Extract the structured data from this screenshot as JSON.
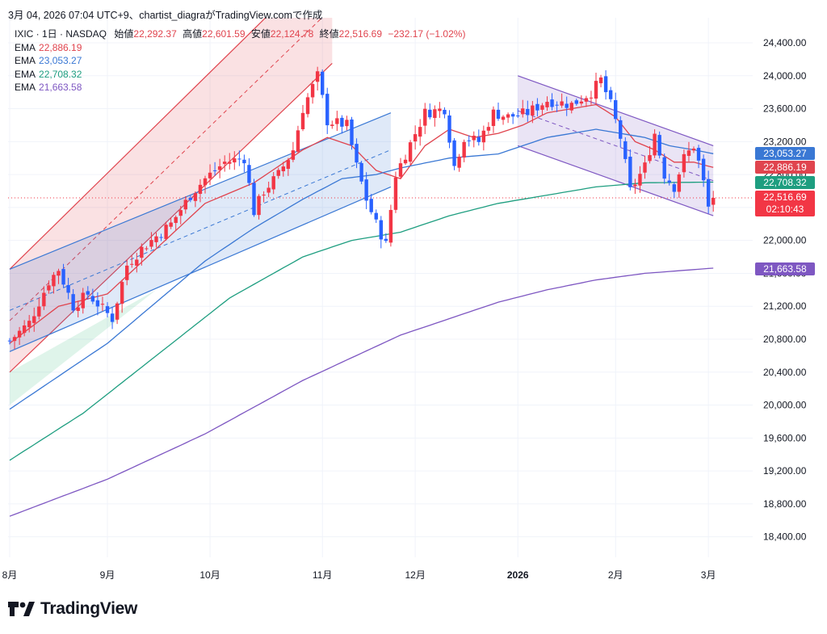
{
  "header": {
    "caption": "3月 04, 2026 07:04 UTC+9、chartist_diagraがTradingView.comで作成"
  },
  "legend": {
    "symbol": "IXIC · 1日 · NASDAQ",
    "open_label": "始値",
    "open": "22,292.37",
    "high_label": "高値",
    "high": "22,601.59",
    "low_label": "安値",
    "low": "22,124.78",
    "close_label": "終値",
    "close": "22,516.69",
    "change": "−232.17 (−1.02%)",
    "ema": [
      {
        "label": "EMA",
        "value": "22,886.19",
        "color": "#e0444e"
      },
      {
        "label": "EMA",
        "value": "23,053.27",
        "color": "#3a78d4"
      },
      {
        "label": "EMA",
        "value": "22,708.32",
        "color": "#1e9e80"
      },
      {
        "label": "EMA",
        "value": "21,663.58",
        "color": "#7e57c2"
      }
    ]
  },
  "brand": {
    "name": "TradingView"
  },
  "chart_data": {
    "type": "candlestick",
    "y_ticks": [
      24400,
      24000,
      23600,
      23200,
      22800,
      22400,
      22000,
      21600,
      21200,
      20800,
      20400,
      20000,
      19600,
      19200,
      18800,
      18400
    ],
    "y_tick_labels": [
      "24,400.00",
      "24,000.00",
      "23,600.00",
      "23,200.00",
      "22,800.00",
      "22,400.00",
      "22,000.00",
      "21,600.00",
      "21,200.00",
      "20,800.00",
      "20,400.00",
      "20,000.00",
      "19,600.00",
      "19,200.00",
      "18,800.00",
      "18,400.00"
    ],
    "ylim": [
      18000,
      24700
    ],
    "x_labels": [
      {
        "text": "8月",
        "index": 0
      },
      {
        "text": "9月",
        "index": 20
      },
      {
        "text": "10月",
        "index": 41
      },
      {
        "text": "11月",
        "index": 64
      },
      {
        "text": "12月",
        "index": 83
      },
      {
        "text": "2026",
        "index": 104
      },
      {
        "text": "2月",
        "index": 124
      },
      {
        "text": "3月",
        "index": 143
      }
    ],
    "candle_count": 145,
    "price_pivots": [
      [
        0,
        20780
      ],
      [
        4,
        21000
      ],
      [
        8,
        21500
      ],
      [
        10,
        21650
      ],
      [
        13,
        21200
      ],
      [
        16,
        21350
      ],
      [
        21,
        21050
      ],
      [
        24,
        21700
      ],
      [
        27,
        21900
      ],
      [
        33,
        22200
      ],
      [
        37,
        22550
      ],
      [
        40,
        22750
      ],
      [
        44,
        22950
      ],
      [
        48,
        23000
      ],
      [
        50,
        22350
      ],
      [
        52,
        22600
      ],
      [
        55,
        22800
      ],
      [
        58,
        23100
      ],
      [
        60,
        23600
      ],
      [
        63,
        24000
      ],
      [
        65,
        23450
      ],
      [
        69,
        23400
      ],
      [
        71,
        22900
      ],
      [
        73,
        22500
      ],
      [
        75,
        22200
      ],
      [
        77,
        21950
      ],
      [
        79,
        22800
      ],
      [
        83,
        23300
      ],
      [
        85,
        23550
      ],
      [
        89,
        23600
      ],
      [
        91,
        22900
      ],
      [
        93,
        23250
      ],
      [
        96,
        23200
      ],
      [
        99,
        23550
      ],
      [
        102,
        23500
      ],
      [
        106,
        23550
      ],
      [
        110,
        23700
      ],
      [
        115,
        23650
      ],
      [
        119,
        23800
      ],
      [
        121,
        23950
      ],
      [
        123,
        23650
      ],
      [
        125,
        23250
      ],
      [
        127,
        22600
      ],
      [
        130,
        22900
      ],
      [
        132,
        23300
      ],
      [
        134,
        22800
      ],
      [
        136,
        22650
      ],
      [
        138,
        23000
      ],
      [
        140,
        23150
      ],
      [
        141,
        22950
      ],
      [
        142,
        22700
      ],
      [
        143,
        22400
      ],
      [
        144,
        22516.69
      ]
    ],
    "series": [
      {
        "name": "EMA",
        "value": 22886.19,
        "color": "#e0444e",
        "pivots": [
          [
            0,
            20750
          ],
          [
            10,
            21200
          ],
          [
            20,
            21350
          ],
          [
            30,
            21900
          ],
          [
            40,
            22450
          ],
          [
            50,
            22700
          ],
          [
            60,
            23100
          ],
          [
            65,
            23250
          ],
          [
            70,
            23150
          ],
          [
            75,
            22850
          ],
          [
            80,
            22750
          ],
          [
            85,
            23150
          ],
          [
            90,
            23350
          ],
          [
            95,
            23250
          ],
          [
            100,
            23300
          ],
          [
            105,
            23400
          ],
          [
            110,
            23550
          ],
          [
            115,
            23600
          ],
          [
            120,
            23650
          ],
          [
            124,
            23500
          ],
          [
            128,
            23200
          ],
          [
            132,
            23100
          ],
          [
            136,
            22950
          ],
          [
            140,
            22950
          ],
          [
            144,
            22886.19
          ]
        ]
      },
      {
        "name": "EMA",
        "value": 23053.27,
        "color": "#3a78d4",
        "pivots": [
          [
            0,
            19950
          ],
          [
            10,
            20350
          ],
          [
            20,
            20750
          ],
          [
            30,
            21250
          ],
          [
            40,
            21750
          ],
          [
            50,
            22150
          ],
          [
            60,
            22500
          ],
          [
            68,
            22750
          ],
          [
            75,
            22800
          ],
          [
            80,
            22880
          ],
          [
            90,
            23000
          ],
          [
            100,
            23050
          ],
          [
            105,
            23150
          ],
          [
            110,
            23250
          ],
          [
            120,
            23350
          ],
          [
            125,
            23300
          ],
          [
            130,
            23250
          ],
          [
            135,
            23150
          ],
          [
            140,
            23100
          ],
          [
            144,
            23053.27
          ]
        ]
      },
      {
        "name": "EMA",
        "value": 22708.32,
        "color": "#1e9e80",
        "pivots": [
          [
            0,
            19330
          ],
          [
            15,
            19900
          ],
          [
            30,
            20600
          ],
          [
            45,
            21300
          ],
          [
            60,
            21800
          ],
          [
            70,
            22000
          ],
          [
            80,
            22100
          ],
          [
            90,
            22300
          ],
          [
            100,
            22450
          ],
          [
            110,
            22550
          ],
          [
            120,
            22650
          ],
          [
            130,
            22700
          ],
          [
            144,
            22708.32
          ]
        ]
      },
      {
        "name": "EMA",
        "value": 21663.58,
        "color": "#7e57c2",
        "pivots": [
          [
            0,
            18650
          ],
          [
            20,
            19100
          ],
          [
            40,
            19650
          ],
          [
            60,
            20300
          ],
          [
            80,
            20850
          ],
          [
            100,
            21250
          ],
          [
            110,
            21400
          ],
          [
            120,
            21520
          ],
          [
            130,
            21600
          ],
          [
            144,
            21663.58
          ]
        ]
      }
    ],
    "price_labels": [
      {
        "text": "23,053.27",
        "value": 23053.27,
        "color": "#3a78d4"
      },
      {
        "text": "22,886.19",
        "value": 22886.19,
        "color": "#e0444e"
      },
      {
        "text": "22,708.32",
        "value": 22708.32,
        "color": "#1e9e80"
      },
      {
        "text": "22,516.69",
        "value": 22516.69,
        "color": "#f23645",
        "countdown": "02:10:43"
      },
      {
        "text": "21,663.58",
        "value": 21663.58,
        "color": "#7e57c2"
      }
    ],
    "channels": [
      {
        "color": "#e0444e",
        "upper": [
          [
            0,
            21650
          ],
          [
            66,
            25500
          ]
        ],
        "lower": [
          [
            0,
            20400
          ],
          [
            66,
            24150
          ]
        ],
        "mid_dashed": true,
        "extension": {
          "color": "#2bb673",
          "to": [
            [
              0,
              20000
            ],
            [
              0,
              20400
            ]
          ]
        }
      },
      {
        "color": "#3a78d4",
        "upper": [
          [
            0,
            21650
          ],
          [
            78,
            23550
          ]
        ],
        "lower": [
          [
            0,
            20650
          ],
          [
            78,
            22650
          ]
        ],
        "mid_dashed": true
      },
      {
        "color": "#7e57c2",
        "upper": [
          [
            104,
            24000
          ],
          [
            144,
            23150
          ]
        ],
        "lower": [
          [
            104,
            23150
          ],
          [
            144,
            22300
          ]
        ],
        "mid_dashed": true
      }
    ],
    "current_price_line": 22516.69
  }
}
